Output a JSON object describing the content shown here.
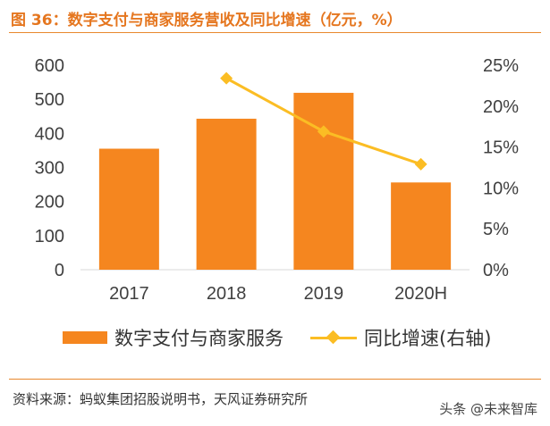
{
  "header": {
    "title": "图 36：数字支付与商家服务营收及同比增速（亿元，%）"
  },
  "footer": {
    "source": "资料来源：蚂蚁集团招股说明书，天风证券研究所",
    "watermark": "头条 @未来智库"
  },
  "colors": {
    "bar": "#f5861f",
    "line": "#fbbd24",
    "accent": "#e5761f"
  },
  "chart_data": {
    "type": "bar",
    "categories": [
      "2017",
      "2018",
      "2019",
      "2020H"
    ],
    "series": [
      {
        "name": "数字支付与商家服务",
        "type": "bar",
        "axis": "left",
        "values": [
          355,
          443,
          519,
          256
        ]
      },
      {
        "name": "同比增速(右轴)",
        "type": "line",
        "axis": "right",
        "values": [
          null,
          23.4,
          16.9,
          12.9
        ]
      }
    ],
    "ylim": [
      0,
      600
    ],
    "yticks": [
      "0",
      "100",
      "200",
      "300",
      "400",
      "500",
      "600"
    ],
    "y2lim": [
      0,
      25
    ],
    "y2ticks": [
      "0%",
      "5%",
      "10%",
      "15%",
      "20%",
      "25%"
    ],
    "legend": "bottom",
    "grid": false
  }
}
